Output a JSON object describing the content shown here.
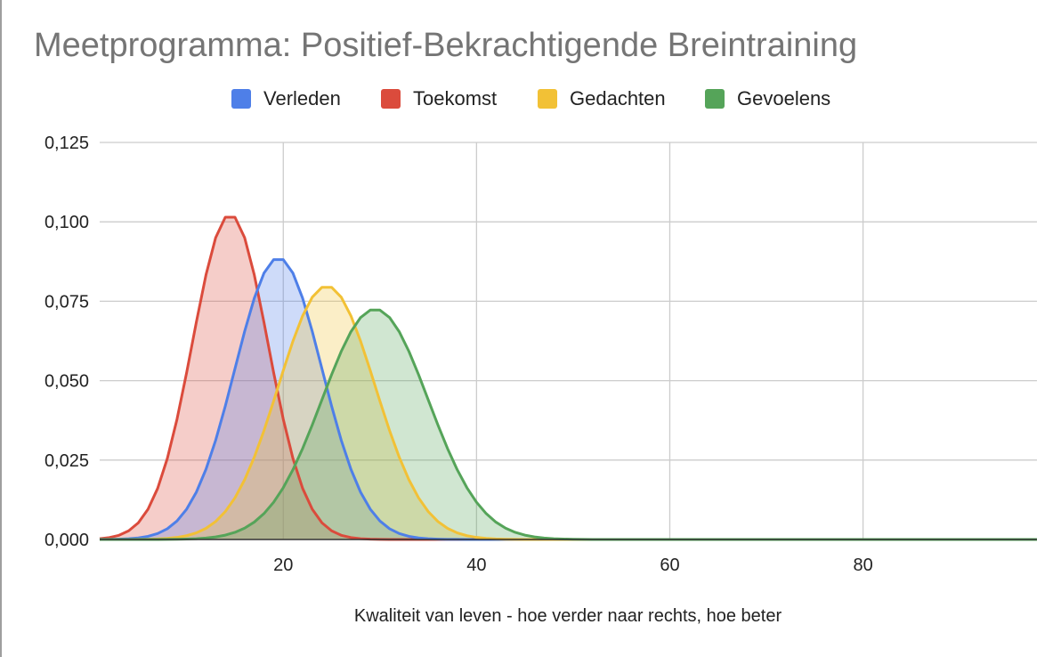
{
  "chart_data": {
    "type": "area",
    "title": "Meetprogramma: Positief-Bekrachtigende Breintraining",
    "xlabel": "Kwaliteit van leven -  hoe verder naar rechts, hoe beter",
    "ylabel": "",
    "xlim": [
      1,
      98
    ],
    "ylim": [
      0,
      0.125
    ],
    "x_ticks": [
      20,
      40,
      60,
      80
    ],
    "x_tick_labels": [
      "20",
      "40",
      "60",
      "80"
    ],
    "y_ticks": [
      0,
      0.025,
      0.05,
      0.075,
      0.1,
      0.125
    ],
    "y_tick_labels": [
      "0,000",
      "0,025",
      "0,050",
      "0,075",
      "0,100",
      "0,125"
    ],
    "grid": true,
    "legend_position": "top",
    "series": [
      {
        "name": "Verleden",
        "color": "#4e7fe8",
        "distribution": "normal",
        "mean": 19.5,
        "sd": 4.5
      },
      {
        "name": "Toekomst",
        "color": "#db4b3c",
        "distribution": "normal",
        "mean": 14.5,
        "sd": 3.9
      },
      {
        "name": "Gedachten",
        "color": "#f2c136",
        "distribution": "normal",
        "mean": 24.5,
        "sd": 5.0
      },
      {
        "name": "Gevoelens",
        "color": "#55a459",
        "distribution": "normal",
        "mean": 29.5,
        "sd": 5.5
      }
    ]
  }
}
